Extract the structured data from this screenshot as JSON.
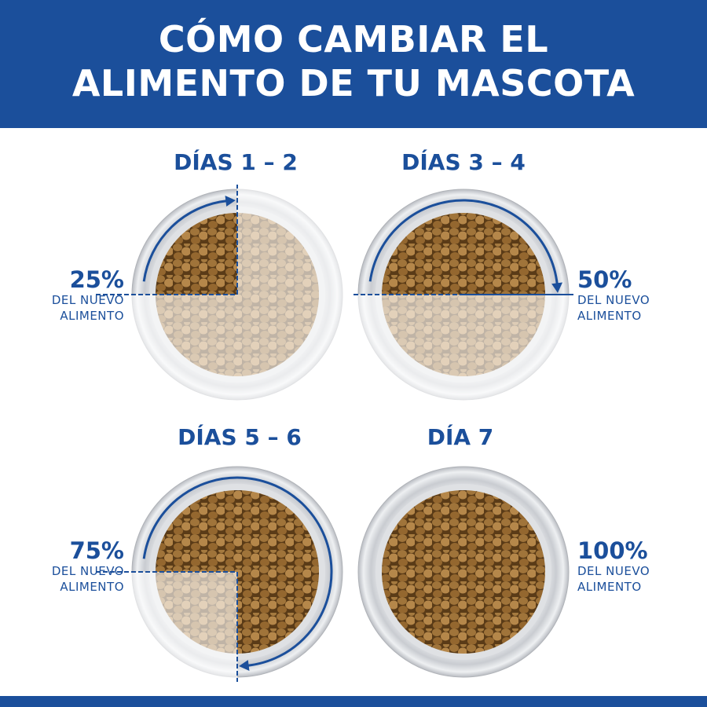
{
  "header": {
    "title_line1": "CÓMO CAMBIAR EL",
    "title_line2": "ALIMENTO DE TU MASCOTA"
  },
  "colors": {
    "brand_blue": "#1b4f9b",
    "kibble": "#a0743a"
  },
  "stages": [
    {
      "title": "DÍAS 1 – 2",
      "percent_label": "25%",
      "line1": "DEL NUEVO",
      "line2": "ALIMENTO",
      "new_food_percent": 25
    },
    {
      "title": "DÍAS 3 – 4",
      "percent_label": "50%",
      "line1": "DEL NUEVO",
      "line2": "ALIMENTO",
      "new_food_percent": 50
    },
    {
      "title": "DÍAS 5 – 6",
      "percent_label": "75%",
      "line1": "DEL NUEVO",
      "line2": "ALIMENTO",
      "new_food_percent": 75
    },
    {
      "title": "DÍA 7",
      "percent_label": "100%",
      "line1": "DEL NUEVO",
      "line2": "ALIMENTO",
      "new_food_percent": 100
    }
  ]
}
